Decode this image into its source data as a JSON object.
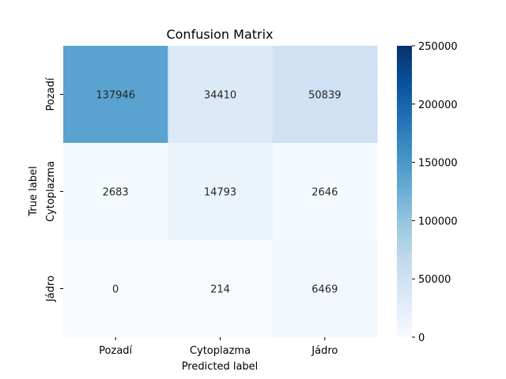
{
  "chart_data": {
    "type": "heatmap",
    "title": "Confusion Matrix",
    "xlabel": "Predicted label",
    "ylabel": "True label",
    "x_categories": [
      "Pozadí",
      "Cytoplazma",
      "Jádro"
    ],
    "y_categories": [
      "Pozadí",
      "Cytoplazma",
      "Jádro"
    ],
    "values": [
      [
        137946,
        34410,
        50839
      ],
      [
        2683,
        14793,
        2646
      ],
      [
        0,
        214,
        6469
      ]
    ],
    "colormap": "Blues",
    "vmin": 0,
    "vmax": 250000,
    "colorbar_ticks": [
      0,
      50000,
      100000,
      150000,
      200000,
      250000
    ]
  }
}
